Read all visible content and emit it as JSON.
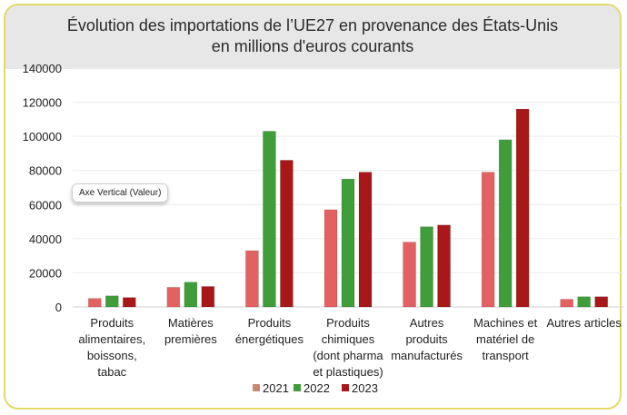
{
  "chart_data": {
    "type": "bar",
    "title": "Évolution des importations de l’UE27 en provenance des États-Unis",
    "subtitle": "en millions d'euros courants",
    "categories": [
      [
        "Produits",
        "alimentaires,",
        "boissons,",
        "tabac"
      ],
      [
        "Matières",
        "premières"
      ],
      [
        "Produits",
        "énergétiques"
      ],
      [
        "Produits",
        "chimiques",
        "(dont pharma",
        "et plastiques)"
      ],
      [
        "Autres",
        "produits",
        "manufacturés"
      ],
      [
        "Machines et",
        "matériel de",
        "transport"
      ],
      [
        "Autres articles"
      ]
    ],
    "series": [
      {
        "name": "2021",
        "color": "#e46161",
        "values": [
          5000,
          11500,
          33000,
          57000,
          38000,
          79000,
          4500
        ]
      },
      {
        "name": "2022",
        "color": "#3f9d3a",
        "values": [
          6500,
          14500,
          103000,
          75000,
          47000,
          98000,
          6000
        ]
      },
      {
        "name": "2023",
        "color": "#a81818",
        "values": [
          5500,
          12000,
          86000,
          79000,
          48000,
          116000,
          6000
        ]
      }
    ],
    "legend_colors": [
      "#c78a6e",
      "#3f9d3a",
      "#a81818"
    ],
    "yticks": [
      "0",
      "20000",
      "40000",
      "60000",
      "80000",
      "100000",
      "120000",
      "140000"
    ],
    "ylim": [
      0,
      140000
    ],
    "grid": true,
    "legend_position": "bottom"
  },
  "tooltip": "Axe Vertical (Valeur)"
}
